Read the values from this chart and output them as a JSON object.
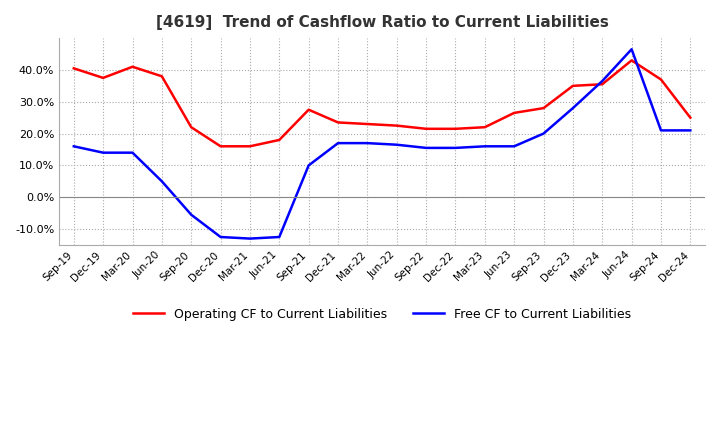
{
  "title": "[4619]  Trend of Cashflow Ratio to Current Liabilities",
  "x_labels": [
    "Sep-19",
    "Dec-19",
    "Mar-20",
    "Jun-20",
    "Sep-20",
    "Dec-20",
    "Mar-21",
    "Jun-21",
    "Sep-21",
    "Dec-21",
    "Mar-22",
    "Jun-22",
    "Sep-22",
    "Dec-22",
    "Mar-23",
    "Jun-23",
    "Sep-23",
    "Dec-23",
    "Mar-24",
    "Jun-24",
    "Sep-24",
    "Dec-24"
  ],
  "operating_cf": [
    40.5,
    37.5,
    41.0,
    38.0,
    22.0,
    16.0,
    16.0,
    18.0,
    27.5,
    23.5,
    23.0,
    22.5,
    21.5,
    21.5,
    22.0,
    26.5,
    28.0,
    35.0,
    35.5,
    43.0,
    37.0,
    25.0
  ],
  "free_cf": [
    16.0,
    14.0,
    14.0,
    5.0,
    -5.5,
    -12.5,
    -13.0,
    -12.5,
    10.0,
    17.0,
    17.0,
    16.5,
    15.5,
    15.5,
    16.0,
    16.0,
    20.0,
    28.0,
    36.5,
    46.5,
    21.0,
    21.0
  ],
  "operating_color": "#FF0000",
  "free_color": "#0000FF",
  "ylim": [
    -15.0,
    50.0
  ],
  "yticks": [
    -10.0,
    0.0,
    10.0,
    20.0,
    30.0,
    40.0
  ],
  "background_color": "#FFFFFF",
  "grid_color": "#AAAAAA",
  "title_fontsize": 11,
  "legend_labels": [
    "Operating CF to Current Liabilities",
    "Free CF to Current Liabilities"
  ]
}
